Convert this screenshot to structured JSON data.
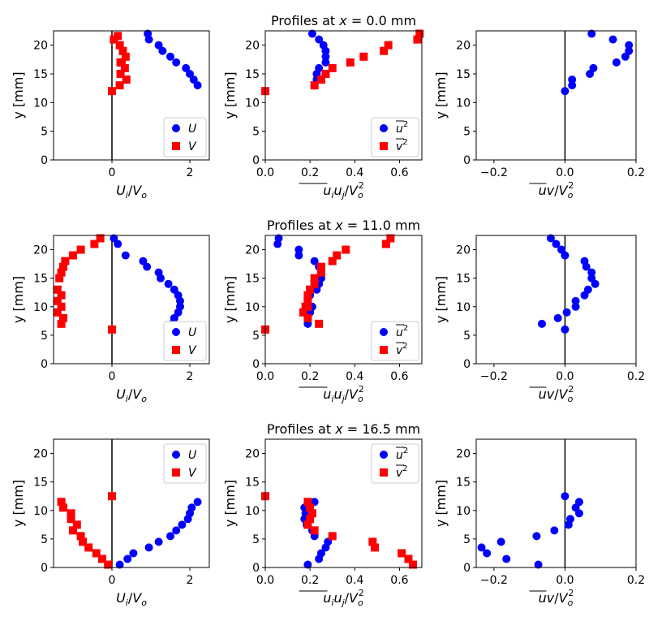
{
  "colors": {
    "U": "#0000ff",
    "V": "#ff0000",
    "axis": "#000000"
  },
  "chart_data": [
    {
      "type": "scatter",
      "row": 0,
      "col": 0,
      "xlim": [
        -1.5,
        2.5
      ],
      "ylim": [
        0,
        22.5
      ],
      "xticks": [
        {
          "v": 0,
          "label": "0"
        },
        {
          "v": 2,
          "label": "2"
        }
      ],
      "yticks": [
        0,
        5,
        10,
        15,
        20
      ],
      "ylabel_text": "y [mm]",
      "xlabel": {
        "main": "U",
        "sub": "i",
        "den": "V",
        "densub": "o"
      },
      "legend": {
        "pos": "lower-right",
        "items": [
          "U",
          "V"
        ]
      },
      "series": [
        {
          "name": "U",
          "marker": "circle",
          "color": "#0000ff",
          "x": [
            0.92,
            0.95,
            1.2,
            1.3,
            1.5,
            1.65,
            1.9,
            2.0,
            2.1,
            2.2
          ],
          "y": [
            22,
            21,
            20,
            19,
            18,
            17,
            16,
            15,
            14,
            13
          ]
        },
        {
          "name": "V",
          "marker": "square",
          "color": "#ff0000",
          "x": [
            0.05,
            0.15,
            0.2,
            0.28,
            0.22,
            0.35,
            0.25,
            0.33,
            0.22,
            0.37,
            0.2,
            0.0
          ],
          "y": [
            21,
            21.6,
            20,
            19,
            17,
            18,
            17,
            16,
            15,
            14,
            13,
            12
          ]
        }
      ]
    },
    {
      "type": "scatter",
      "row": 0,
      "col": 1,
      "title": "Profiles at x = 0.0 mm",
      "xlim": [
        0.0,
        0.7
      ],
      "ylim": [
        0,
        22.5
      ],
      "xticks": [
        {
          "v": 0.0,
          "label": "0.0"
        },
        {
          "v": 0.2,
          "label": "0.2"
        },
        {
          "v": 0.4,
          "label": "0.4"
        },
        {
          "v": 0.6,
          "label": "0.6"
        }
      ],
      "yticks": [
        0,
        5,
        10,
        15,
        20
      ],
      "ylabel_text": "y [mm]",
      "xlabel_text": "uiuj/Vo2",
      "legend": {
        "pos": "lower-right",
        "items": [
          "u²",
          "v²"
        ]
      },
      "series": [
        {
          "name": "u²",
          "marker": "circle",
          "color": "#0000ff",
          "x": [
            0.21,
            0.24,
            0.26,
            0.27,
            0.27,
            0.27,
            0.24,
            0.23,
            0.23,
            0.22
          ],
          "y": [
            22,
            21,
            20,
            19,
            18,
            17,
            16,
            15,
            14,
            13
          ]
        },
        {
          "name": "v²",
          "marker": "square",
          "color": "#ff0000",
          "x": [
            0.69,
            0.68,
            0.55,
            0.53,
            0.44,
            0.38,
            0.3,
            0.27,
            0.25,
            0.22,
            0.0
          ],
          "y": [
            22,
            21,
            20,
            19,
            18,
            17,
            16,
            15,
            14,
            13,
            12
          ]
        }
      ]
    },
    {
      "type": "scatter",
      "row": 0,
      "col": 2,
      "xlim": [
        -0.25,
        0.2
      ],
      "ylim": [
        0,
        22.5
      ],
      "xticks": [
        {
          "v": -0.2,
          "label": "−0.2"
        },
        {
          "v": 0.0,
          "label": "0.0"
        },
        {
          "v": 0.2,
          "label": "0.2"
        }
      ],
      "yticks": [
        0,
        5,
        10,
        15,
        20
      ],
      "ylabel_text": "y [mm]",
      "xlabel_text": "uv/Vo2",
      "series": [
        {
          "name": "uv",
          "marker": "circle",
          "color": "#0000ff",
          "x": [
            0.075,
            0.135,
            0.18,
            0.18,
            0.17,
            0.145,
            0.08,
            0.07,
            0.02,
            0.02,
            0.0
          ],
          "y": [
            22,
            21,
            20,
            19,
            18,
            17,
            16,
            15,
            14,
            13,
            12
          ]
        }
      ]
    },
    {
      "type": "scatter",
      "row": 1,
      "col": 0,
      "xlim": [
        -1.5,
        2.5
      ],
      "ylim": [
        0,
        22.5
      ],
      "xticks": [
        {
          "v": 0,
          "label": "0"
        },
        {
          "v": 2,
          "label": "2"
        }
      ],
      "yticks": [
        0,
        5,
        10,
        15,
        20
      ],
      "ylabel_text": "y [mm]",
      "xlabel": {
        "main": "U",
        "sub": "i",
        "den": "V",
        "densub": "o"
      },
      "legend": {
        "pos": "lower-right",
        "items": [
          "U",
          "V"
        ]
      },
      "series": [
        {
          "name": "U",
          "marker": "circle",
          "color": "#0000ff",
          "x": [
            0.05,
            0.15,
            0.35,
            0.8,
            0.9,
            1.2,
            1.25,
            1.45,
            1.6,
            1.7,
            1.75,
            1.75,
            1.7,
            1.6,
            1.55
          ],
          "y": [
            22,
            21,
            19,
            18,
            17,
            16,
            15,
            14,
            13,
            12,
            11,
            10,
            9,
            8,
            7
          ]
        },
        {
          "name": "V",
          "marker": "square",
          "color": "#ff0000",
          "x": [
            -0.3,
            -0.45,
            -0.8,
            -1.0,
            -1.2,
            -1.25,
            -1.3,
            -1.35,
            -1.4,
            -1.3,
            -1.4,
            -1.3,
            -1.4,
            -1.25,
            -1.3,
            0.0
          ],
          "y": [
            22,
            21,
            20,
            19,
            18,
            17,
            16,
            15,
            13,
            12,
            11,
            10,
            9,
            8,
            7,
            6
          ]
        }
      ]
    },
    {
      "type": "scatter",
      "row": 1,
      "col": 1,
      "title": "Profiles at x = 11.0 mm",
      "xlim": [
        0.0,
        0.7
      ],
      "ylim": [
        0,
        22.5
      ],
      "xticks": [
        {
          "v": 0.0,
          "label": "0.0"
        },
        {
          "v": 0.2,
          "label": "0.2"
        },
        {
          "v": 0.4,
          "label": "0.4"
        },
        {
          "v": 0.6,
          "label": "0.6"
        }
      ],
      "yticks": [
        0,
        5,
        10,
        15,
        20
      ],
      "ylabel_text": "y [mm]",
      "xlabel_text": "uiuj/Vo2",
      "legend": {
        "pos": "lower-right",
        "items": [
          "u²",
          "v²"
        ]
      },
      "series": [
        {
          "name": "u²",
          "marker": "circle",
          "color": "#0000ff",
          "x": [
            0.06,
            0.055,
            0.15,
            0.15,
            0.22,
            0.24,
            0.25,
            0.24,
            0.23,
            0.2,
            0.19,
            0.21,
            0.2,
            0.19,
            0.19
          ],
          "y": [
            22,
            21,
            20,
            19,
            18,
            17,
            15,
            14,
            13,
            12,
            11,
            10,
            9,
            8,
            7
          ]
        },
        {
          "name": "v²",
          "marker": "square",
          "color": "#ff0000",
          "x": [
            0.56,
            0.54,
            0.36,
            0.32,
            0.3,
            0.25,
            0.25,
            0.22,
            0.22,
            0.2,
            0.19,
            0.19,
            0.18,
            0.19,
            0.17,
            0.19,
            0.24,
            0.0
          ],
          "y": [
            22,
            21,
            20,
            19,
            18,
            17,
            16,
            15,
            14,
            13,
            12,
            11,
            10,
            10,
            9,
            8,
            7,
            6
          ]
        }
      ]
    },
    {
      "type": "scatter",
      "row": 1,
      "col": 2,
      "xlim": [
        -0.25,
        0.2
      ],
      "ylim": [
        0,
        22.5
      ],
      "xticks": [
        {
          "v": -0.2,
          "label": "−0.2"
        },
        {
          "v": 0.0,
          "label": "0.0"
        },
        {
          "v": 0.2,
          "label": "0.2"
        }
      ],
      "yticks": [
        0,
        5,
        10,
        15,
        20
      ],
      "ylabel_text": "y [mm]",
      "xlabel_text": "uv/Vo2",
      "series": [
        {
          "name": "uv",
          "marker": "circle",
          "color": "#0000ff",
          "x": [
            -0.04,
            -0.025,
            -0.01,
            0.0,
            0.055,
            0.06,
            0.075,
            0.075,
            0.085,
            0.065,
            0.055,
            0.03,
            0.03,
            0.005,
            -0.02,
            -0.065,
            0.0
          ],
          "y": [
            22,
            21,
            20,
            19,
            18,
            17,
            16,
            15,
            14,
            13,
            12,
            11,
            10,
            9,
            8,
            7,
            6
          ]
        }
      ]
    },
    {
      "type": "scatter",
      "row": 2,
      "col": 0,
      "xlim": [
        -1.5,
        2.5
      ],
      "ylim": [
        0,
        22.5
      ],
      "xticks": [
        {
          "v": 0,
          "label": "0"
        },
        {
          "v": 2,
          "label": "2"
        }
      ],
      "yticks": [
        0,
        5,
        10,
        15,
        20
      ],
      "ylabel_text": "y [mm]",
      "xlabel": {
        "main": "U",
        "sub": "i",
        "den": "V",
        "densub": "o"
      },
      "legend": {
        "pos": "upper-right",
        "items": [
          "U",
          "V"
        ]
      },
      "series": [
        {
          "name": "U",
          "marker": "circle",
          "color": "#0000ff",
          "x": [
            2.2,
            2.05,
            2.0,
            1.95,
            1.8,
            1.65,
            1.5,
            1.2,
            0.95,
            0.55,
            0.4,
            0.2
          ],
          "y": [
            11.5,
            10.5,
            9.5,
            8.5,
            7.5,
            6.5,
            5.5,
            4.5,
            3.5,
            2.5,
            1.5,
            0.5
          ]
        },
        {
          "name": "V",
          "marker": "square",
          "color": "#ff0000",
          "x": [
            -1.3,
            -1.25,
            -1.05,
            -1.05,
            -0.9,
            -1.0,
            -0.8,
            -0.75,
            -0.6,
            -0.4,
            -0.25,
            -0.1,
            0.0
          ],
          "y": [
            11.5,
            10.5,
            9.5,
            8.5,
            7.5,
            6.5,
            5.5,
            4.5,
            3.5,
            2.5,
            1.5,
            0.5,
            12.5
          ]
        }
      ]
    },
    {
      "type": "scatter",
      "row": 2,
      "col": 1,
      "title": "Profiles at x = 16.5 mm",
      "xlim": [
        0.0,
        0.7
      ],
      "ylim": [
        0,
        22.5
      ],
      "xticks": [
        {
          "v": 0.0,
          "label": "0.0"
        },
        {
          "v": 0.2,
          "label": "0.2"
        },
        {
          "v": 0.4,
          "label": "0.4"
        },
        {
          "v": 0.6,
          "label": "0.6"
        }
      ],
      "yticks": [
        0,
        5,
        10,
        15,
        20
      ],
      "ylabel_text": "y [mm]",
      "xlabel_text": "uiuj/Vo2",
      "legend": {
        "pos": "upper-right",
        "items": [
          "u²",
          "v²"
        ]
      },
      "series": [
        {
          "name": "u²",
          "marker": "circle",
          "color": "#0000ff",
          "x": [
            0.22,
            0.175,
            0.18,
            0.175,
            0.185,
            0.21,
            0.22,
            0.28,
            0.27,
            0.25,
            0.24,
            0.19
          ],
          "y": [
            11.5,
            10.5,
            9.5,
            8.5,
            7.5,
            6.5,
            5.5,
            4.5,
            3.5,
            2.5,
            1.5,
            0.5
          ]
        },
        {
          "name": "v²",
          "marker": "square",
          "color": "#ff0000",
          "x": [
            0.19,
            0.2,
            0.21,
            0.2,
            0.19,
            0.22,
            0.3,
            0.48,
            0.49,
            0.61,
            0.64,
            0.66,
            0.0
          ],
          "y": [
            11.5,
            10.5,
            9.5,
            8.5,
            7.5,
            6.5,
            5.5,
            4.5,
            3.5,
            2.5,
            1.5,
            0.5,
            12.5
          ]
        }
      ]
    },
    {
      "type": "scatter",
      "row": 2,
      "col": 2,
      "xlim": [
        -0.25,
        0.2
      ],
      "ylim": [
        0,
        22.5
      ],
      "xticks": [
        {
          "v": -0.2,
          "label": "−0.2"
        },
        {
          "v": 0.0,
          "label": "0.0"
        },
        {
          "v": 0.2,
          "label": "0.2"
        }
      ],
      "yticks": [
        0,
        5,
        10,
        15,
        20
      ],
      "ylabel_text": "y [mm]",
      "xlabel_text": "uv/Vo2",
      "series": [
        {
          "name": "uv",
          "marker": "circle",
          "color": "#0000ff",
          "x": [
            0.04,
            0.03,
            0.04,
            0.015,
            0.01,
            -0.03,
            -0.08,
            -0.18,
            -0.235,
            -0.22,
            -0.165,
            -0.075,
            0.0
          ],
          "y": [
            11.5,
            10.5,
            9.5,
            8.5,
            7.5,
            6.5,
            5.5,
            4.5,
            3.5,
            2.5,
            1.5,
            0.5,
            12.5
          ]
        }
      ]
    }
  ]
}
